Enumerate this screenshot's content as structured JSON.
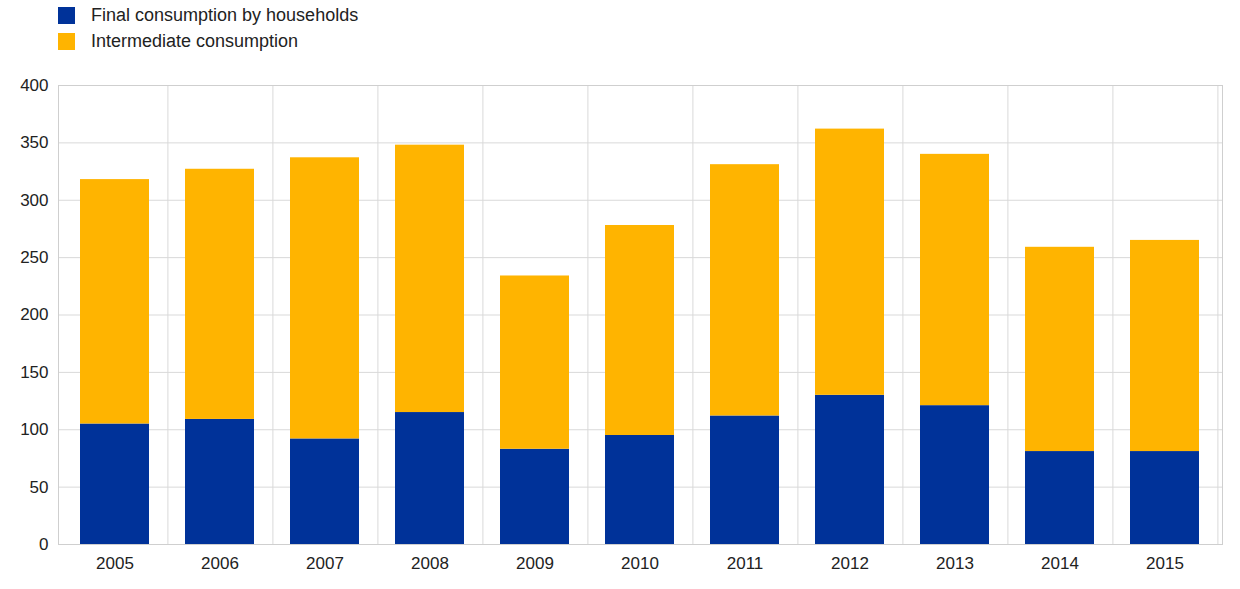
{
  "chart_data": {
    "type": "bar",
    "stacked": true,
    "categories": [
      "2005",
      "2006",
      "2007",
      "2008",
      "2009",
      "2010",
      "2011",
      "2012",
      "2013",
      "2014",
      "2015"
    ],
    "series": [
      {
        "name": "Final consumption by households",
        "color": "#003299",
        "values": [
          105,
          109,
          92,
          115,
          83,
          95,
          112,
          130,
          121,
          81,
          81
        ]
      },
      {
        "name": "Intermediate consumption",
        "color": "#FFB400",
        "values": [
          213,
          218,
          245,
          233,
          151,
          183,
          219,
          232,
          219,
          178,
          184
        ]
      }
    ],
    "ylim": [
      0,
      400
    ],
    "yticks": [
      0,
      50,
      100,
      150,
      200,
      250,
      300,
      350,
      400
    ],
    "grid": true,
    "legend": "top-left"
  }
}
